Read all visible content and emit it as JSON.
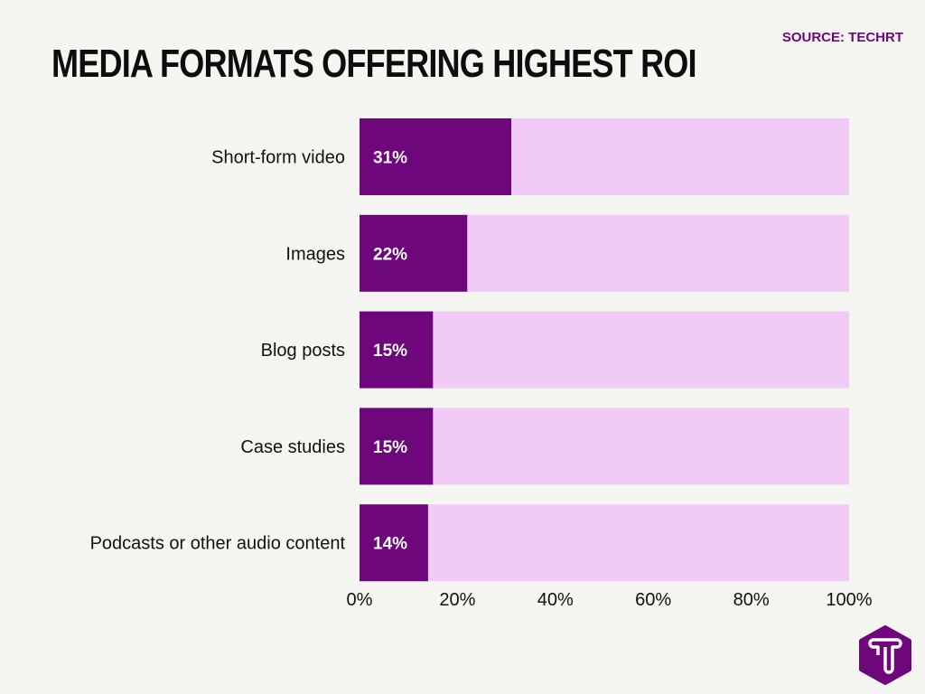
{
  "header": {
    "title": "MEDIA FORMATS OFFERING HIGHEST ROI",
    "source": "SOURCE: TECHRT"
  },
  "colors": {
    "bar": "#6e067c",
    "track": "#efcbf5",
    "background": "#f5f5f2",
    "accent": "#6e067c"
  },
  "logo": {
    "icon": "techrt-hexagon-t-logo",
    "text": "T"
  },
  "chart_data": {
    "type": "bar",
    "orientation": "horizontal",
    "title": "MEDIA FORMATS OFFERING HIGHEST ROI",
    "categories": [
      "Short-form video",
      "Images",
      "Blog posts",
      "Case studies",
      "Podcasts or other audio content"
    ],
    "values": [
      31,
      22,
      15,
      15,
      14
    ],
    "value_labels": [
      "31%",
      "22%",
      "15%",
      "15%",
      "14%"
    ],
    "xlim": [
      0,
      100
    ],
    "xticks": [
      0,
      20,
      40,
      60,
      80,
      100
    ],
    "xtick_labels": [
      "0%",
      "20%",
      "40%",
      "60%",
      "80%",
      "100%"
    ],
    "grid": false,
    "legend": "none"
  }
}
